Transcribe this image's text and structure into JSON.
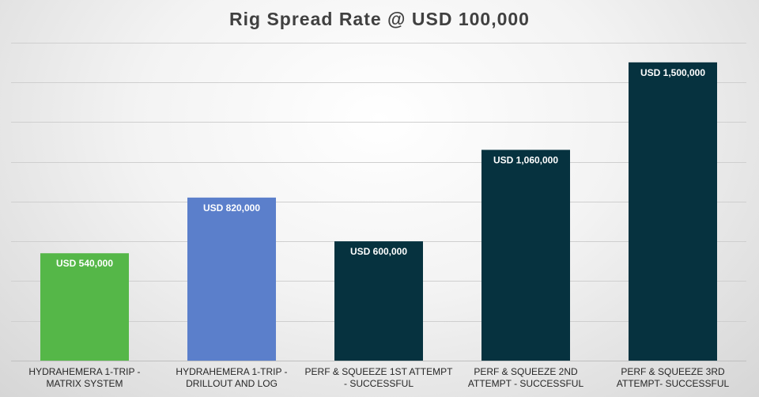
{
  "chart_data": {
    "type": "bar",
    "title": "Rig Spread Rate @ USD 100,000",
    "categories": [
      [
        "HYDRAHEMERA 1-TRIP -",
        "MATRIX SYSTEM"
      ],
      [
        "HYDRAHEMERA 1-TRIP -",
        "DRILLOUT AND LOG"
      ],
      [
        "PERF & SQUEEZE 1ST ATTEMPT",
        "- SUCCESSFUL"
      ],
      [
        "PERF & SQUEEZE 2ND",
        "ATTEMPT - SUCCESSFUL"
      ],
      [
        "PERF & SQUEEZE 3RD",
        "ATTEMPT- SUCCESSFUL"
      ]
    ],
    "values": [
      540000,
      820000,
      600000,
      1060000,
      1500000
    ],
    "data_labels": [
      "USD 540,000",
      "USD 820,000",
      "USD 600,000",
      "USD 1,060,000",
      "USD 1,500,000"
    ],
    "bar_colors": [
      "#55b748",
      "#5b7fcb",
      "#06323f",
      "#06323f",
      "#06323f"
    ],
    "ylim": [
      0,
      1800000
    ],
    "gridline_step": 200000,
    "grid": true,
    "legend": "none",
    "xlabel": "",
    "ylabel": ""
  }
}
